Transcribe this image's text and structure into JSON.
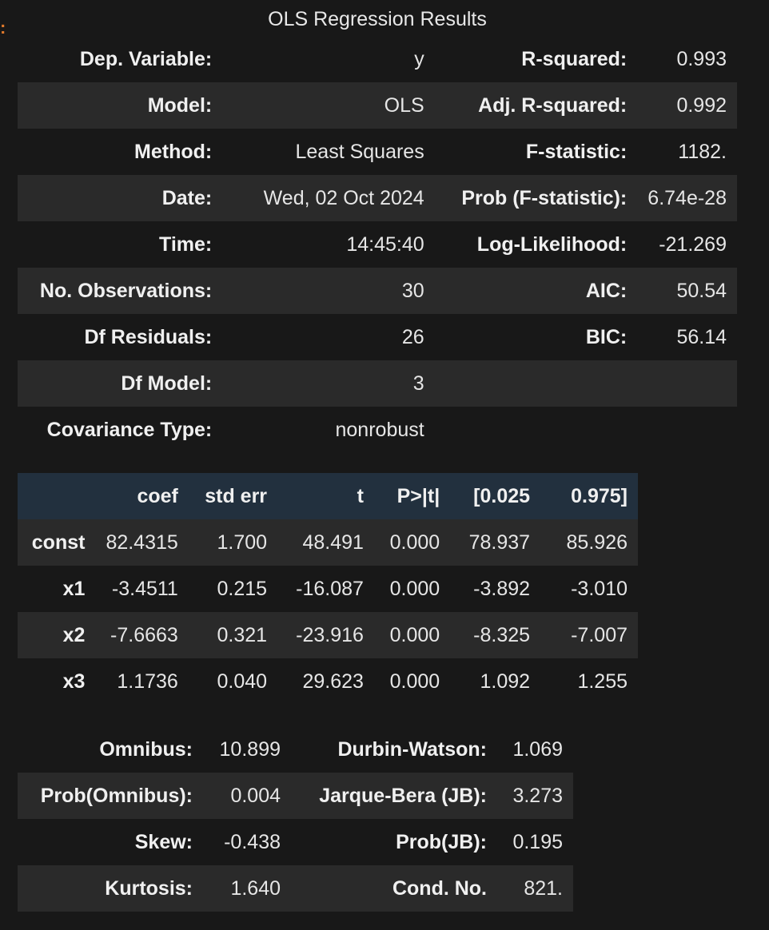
{
  "cell_marker": ":",
  "summary": {
    "caption": "OLS Regression Results",
    "rows": [
      {
        "l1": "Dep. Variable:",
        "v1": "y",
        "l2": "R-squared:",
        "v2": "0.993"
      },
      {
        "l1": "Model:",
        "v1": "OLS",
        "l2": "Adj. R-squared:",
        "v2": "0.992"
      },
      {
        "l1": "Method:",
        "v1": "Least Squares",
        "l2": "F-statistic:",
        "v2": "1182."
      },
      {
        "l1": "Date:",
        "v1": "Wed, 02 Oct 2024",
        "l2": "Prob (F-statistic):",
        "v2": "6.74e-28"
      },
      {
        "l1": "Time:",
        "v1": "14:45:40",
        "l2": "Log-Likelihood:",
        "v2": "-21.269"
      },
      {
        "l1": "No. Observations:",
        "v1": "30",
        "l2": "AIC:",
        "v2": "50.54"
      },
      {
        "l1": "Df Residuals:",
        "v1": "26",
        "l2": "BIC:",
        "v2": "56.14"
      },
      {
        "l1": "Df Model:",
        "v1": "3",
        "l2": "",
        "v2": ""
      },
      {
        "l1": "Covariance Type:",
        "v1": "nonrobust",
        "l2": "",
        "v2": ""
      }
    ]
  },
  "coefficients": {
    "headers": [
      "",
      "coef",
      "std err",
      "t",
      "P>|t|",
      "[0.025",
      "0.975]"
    ],
    "rows": [
      [
        "const",
        "82.4315",
        "1.700",
        "48.491",
        "0.000",
        "78.937",
        "85.926"
      ],
      [
        "x1",
        "-3.4511",
        "0.215",
        "-16.087",
        "0.000",
        "-3.892",
        "-3.010"
      ],
      [
        "x2",
        "-7.6663",
        "0.321",
        "-23.916",
        "0.000",
        "-8.325",
        "-7.007"
      ],
      [
        "x3",
        "1.1736",
        "0.040",
        "29.623",
        "0.000",
        "1.092",
        "1.255"
      ]
    ]
  },
  "diagnostics": {
    "rows": [
      {
        "l1": "Omnibus:",
        "v1": "10.899",
        "l2": "Durbin-Watson:",
        "v2": "1.069"
      },
      {
        "l1": "Prob(Omnibus):",
        "v1": "0.004",
        "l2": "Jarque-Bera (JB):",
        "v2": "3.273"
      },
      {
        "l1": "Skew:",
        "v1": "-0.438",
        "l2": "Prob(JB):",
        "v2": "0.195"
      },
      {
        "l1": "Kurtosis:",
        "v1": "1.640",
        "l2": "Cond. No.",
        "v2": "821."
      }
    ]
  },
  "colors": {
    "background": "#181818",
    "row_alt": "#2a2a2a",
    "header_bg": "#22303e",
    "marker": "#e0792b"
  }
}
